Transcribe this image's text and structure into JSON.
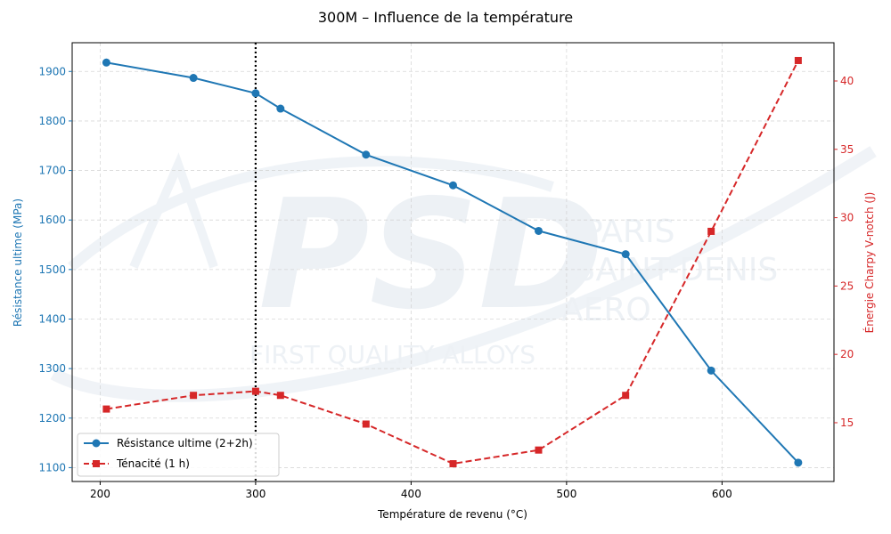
{
  "chart_data": {
    "type": "line",
    "title": "300M – Influence de la température",
    "xlabel": "Température de revenu (°C)",
    "ylabel_left": "Résistance ultime (MPa)",
    "ylabel_right": "Énergie Charpy V-notch (J)",
    "xlim": [
      182,
      672
    ],
    "ylim_left": [
      1072,
      1958
    ],
    "ylim_right": [
      10.7,
      42.8
    ],
    "x_ticks": [
      200,
      300,
      400,
      500,
      600
    ],
    "y_left_ticks": [
      1100,
      1200,
      1300,
      1400,
      1500,
      1600,
      1700,
      1800,
      1900
    ],
    "y_right_ticks": [
      15,
      20,
      25,
      30,
      35,
      40
    ],
    "grid": true,
    "legend_position": "lower-left",
    "vline_x": 300,
    "colors": {
      "left": "#1f77b4",
      "right": "#d62728"
    },
    "series": [
      {
        "name": "Résistance ultime (2+2h)",
        "axis": "left",
        "style": "solid-circle",
        "x": [
          204,
          260,
          300,
          316,
          371,
          427,
          482,
          538,
          593,
          649
        ],
        "values": [
          1918,
          1887,
          1856,
          1825,
          1732,
          1670,
          1578,
          1531,
          1296,
          1110
        ]
      },
      {
        "name": "Ténacité (1 h)",
        "axis": "right",
        "style": "dashed-square",
        "x": [
          204,
          260,
          300,
          316,
          371,
          427,
          482,
          538,
          593,
          649
        ],
        "values": [
          16,
          17,
          17.3,
          17,
          14.9,
          12,
          13,
          17,
          29,
          41.5
        ]
      }
    ]
  },
  "watermark": {
    "logo": "PSD",
    "line1": "PARIS",
    "line2": "SAINT-DENIS",
    "line3": "AERO",
    "tagline": "FIRST QUALITY ALLOYS"
  }
}
